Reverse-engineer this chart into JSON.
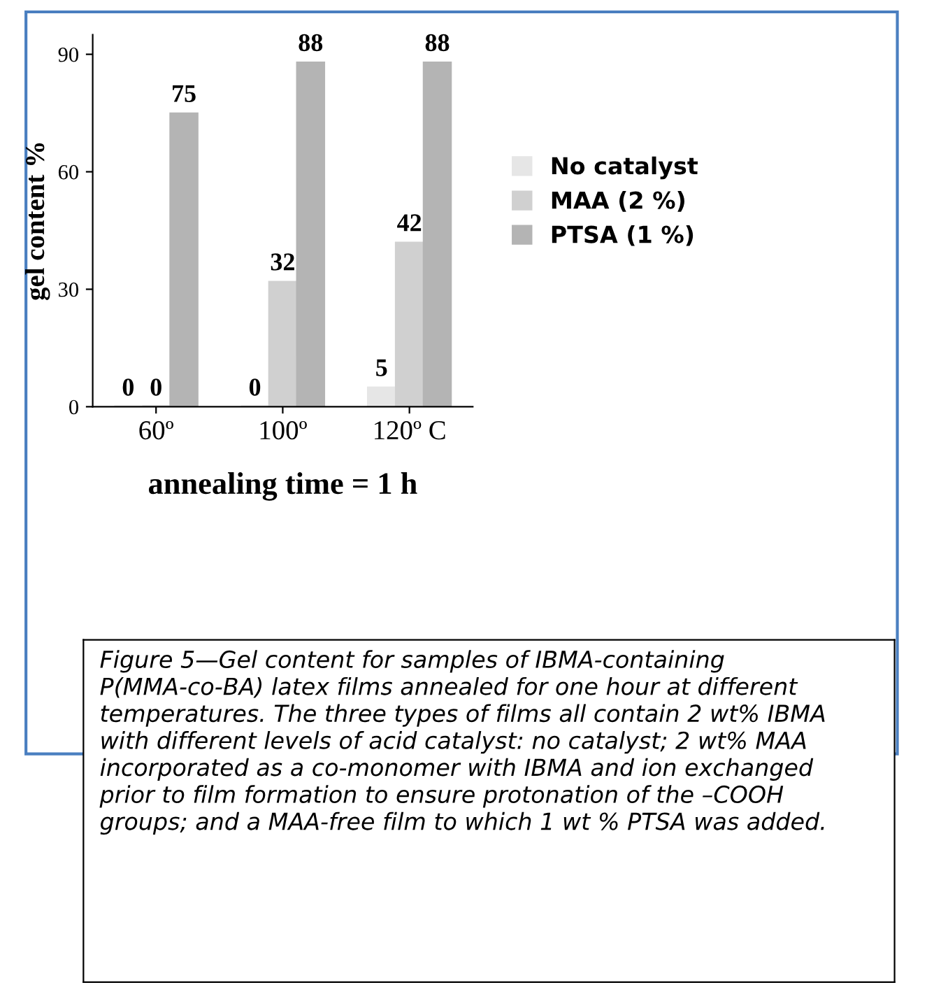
{
  "chart_data": {
    "type": "bar",
    "ylabel": "gel content %",
    "xlabel": "annealing time = 1 h",
    "categories": [
      "60º",
      "100º",
      "120º C"
    ],
    "series": [
      {
        "name": "No catalyst",
        "color": "#e6e6e6",
        "values": [
          0,
          0,
          5
        ]
      },
      {
        "name": "MAA (2 %)",
        "color": "#d0d0d0",
        "values": [
          0,
          32,
          42
        ]
      },
      {
        "name": "PTSA (1 %)",
        "color": "#b4b4b4",
        "values": [
          75,
          88,
          88
        ]
      }
    ],
    "ylim": [
      0,
      95
    ],
    "yticks": [
      0,
      30,
      60,
      90
    ],
    "grid": false,
    "legend": "right",
    "data_labels": true,
    "annotations": [
      "Figure 5—Gel content for samples of IBMA-containing P(MMA-co-BA) latex films annealed for one hour at different temperatures. The three types of films all contain 2 wt% IBMA with different levels of acid catalyst: no catalyst; 2 wt% MAA incorporated as a co-monomer with IBMA and ion exchanged prior to film formation to ensure protonation of the –COOH groups; and a MAA-free film to which 1 wt % PTSA was added."
    ]
  }
}
